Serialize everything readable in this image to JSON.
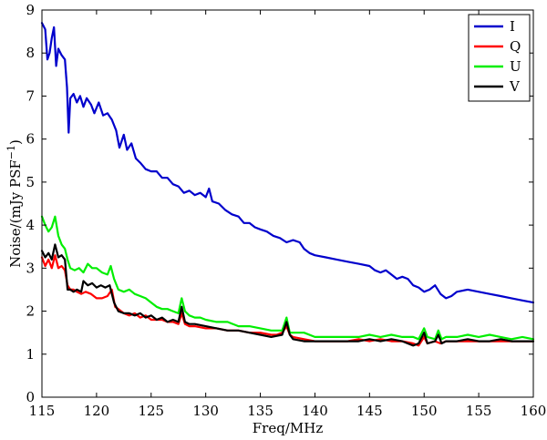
{
  "chart_data": {
    "type": "line",
    "xlabel": "Freq/MHz",
    "ylabel_main": "Noise/(mJy PSF",
    "ylabel_sup": "−1",
    "ylabel_close": ")",
    "xlim": [
      115,
      160
    ],
    "ylim": [
      0,
      9
    ],
    "xticks": [
      115,
      120,
      125,
      130,
      135,
      140,
      145,
      150,
      155,
      160
    ],
    "yticks": [
      0,
      1,
      2,
      3,
      4,
      5,
      6,
      7,
      8,
      9
    ],
    "grid": false,
    "legend_position": "top-right",
    "series": [
      {
        "name": "I",
        "color": "#0000cc",
        "points": [
          [
            115.0,
            8.7
          ],
          [
            115.3,
            8.55
          ],
          [
            115.5,
            7.85
          ],
          [
            115.7,
            8.0
          ],
          [
            115.9,
            8.35
          ],
          [
            116.1,
            8.6
          ],
          [
            116.3,
            7.7
          ],
          [
            116.5,
            8.1
          ],
          [
            116.8,
            7.95
          ],
          [
            117.1,
            7.85
          ],
          [
            117.3,
            7.2
          ],
          [
            117.45,
            6.15
          ],
          [
            117.6,
            6.95
          ],
          [
            117.9,
            7.05
          ],
          [
            118.2,
            6.85
          ],
          [
            118.5,
            7.0
          ],
          [
            118.8,
            6.75
          ],
          [
            119.1,
            6.95
          ],
          [
            119.5,
            6.8
          ],
          [
            119.8,
            6.6
          ],
          [
            120.2,
            6.85
          ],
          [
            120.6,
            6.55
          ],
          [
            121.0,
            6.6
          ],
          [
            121.4,
            6.45
          ],
          [
            121.8,
            6.2
          ],
          [
            122.1,
            5.8
          ],
          [
            122.5,
            6.1
          ],
          [
            122.8,
            5.75
          ],
          [
            123.2,
            5.9
          ],
          [
            123.6,
            5.55
          ],
          [
            124.0,
            5.45
          ],
          [
            124.5,
            5.3
          ],
          [
            125.0,
            5.25
          ],
          [
            125.5,
            5.25
          ],
          [
            126.0,
            5.1
          ],
          [
            126.5,
            5.1
          ],
          [
            127.0,
            4.95
          ],
          [
            127.5,
            4.9
          ],
          [
            128.0,
            4.75
          ],
          [
            128.5,
            4.8
          ],
          [
            129.0,
            4.7
          ],
          [
            129.5,
            4.75
          ],
          [
            130.0,
            4.65
          ],
          [
            130.3,
            4.85
          ],
          [
            130.6,
            4.55
          ],
          [
            131.2,
            4.5
          ],
          [
            131.8,
            4.35
          ],
          [
            132.4,
            4.25
          ],
          [
            133.0,
            4.2
          ],
          [
            133.5,
            4.05
          ],
          [
            134.0,
            4.05
          ],
          [
            134.5,
            3.95
          ],
          [
            135.0,
            3.9
          ],
          [
            135.6,
            3.85
          ],
          [
            136.2,
            3.75
          ],
          [
            136.8,
            3.7
          ],
          [
            137.4,
            3.6
          ],
          [
            138.0,
            3.65
          ],
          [
            138.6,
            3.6
          ],
          [
            139.0,
            3.45
          ],
          [
            139.5,
            3.35
          ],
          [
            140.0,
            3.3
          ],
          [
            141.0,
            3.25
          ],
          [
            142.0,
            3.2
          ],
          [
            143.0,
            3.15
          ],
          [
            144.0,
            3.1
          ],
          [
            145.0,
            3.05
          ],
          [
            145.5,
            2.95
          ],
          [
            146.0,
            2.9
          ],
          [
            146.5,
            2.95
          ],
          [
            147.0,
            2.85
          ],
          [
            147.5,
            2.75
          ],
          [
            148.0,
            2.8
          ],
          [
            148.5,
            2.75
          ],
          [
            149.0,
            2.6
          ],
          [
            149.5,
            2.55
          ],
          [
            150.0,
            2.45
          ],
          [
            150.5,
            2.5
          ],
          [
            151.0,
            2.6
          ],
          [
            151.5,
            2.4
          ],
          [
            152.0,
            2.3
          ],
          [
            152.5,
            2.35
          ],
          [
            153.0,
            2.45
          ],
          [
            154.0,
            2.5
          ],
          [
            155.0,
            2.45
          ],
          [
            156.0,
            2.4
          ],
          [
            157.0,
            2.35
          ],
          [
            158.0,
            2.3
          ],
          [
            159.0,
            2.25
          ],
          [
            160.0,
            2.2
          ]
        ]
      },
      {
        "name": "Q",
        "color": "#ff0000",
        "points": [
          [
            115.0,
            3.25
          ],
          [
            115.3,
            3.05
          ],
          [
            115.6,
            3.2
          ],
          [
            115.9,
            3.0
          ],
          [
            116.2,
            3.3
          ],
          [
            116.5,
            3.0
          ],
          [
            116.8,
            3.05
          ],
          [
            117.1,
            2.95
          ],
          [
            117.35,
            2.6
          ],
          [
            117.6,
            2.5
          ],
          [
            117.9,
            2.5
          ],
          [
            118.2,
            2.45
          ],
          [
            118.6,
            2.4
          ],
          [
            119.0,
            2.45
          ],
          [
            119.5,
            2.4
          ],
          [
            120.0,
            2.3
          ],
          [
            120.5,
            2.3
          ],
          [
            121.0,
            2.35
          ],
          [
            121.4,
            2.5
          ],
          [
            121.7,
            2.1
          ],
          [
            122.0,
            2.05
          ],
          [
            122.5,
            1.95
          ],
          [
            123.0,
            1.9
          ],
          [
            123.5,
            1.95
          ],
          [
            124.0,
            1.85
          ],
          [
            124.5,
            1.9
          ],
          [
            125.0,
            1.8
          ],
          [
            125.5,
            1.8
          ],
          [
            126.0,
            1.8
          ],
          [
            126.5,
            1.75
          ],
          [
            127.0,
            1.75
          ],
          [
            127.5,
            1.7
          ],
          [
            127.8,
            1.95
          ],
          [
            128.1,
            1.7
          ],
          [
            128.5,
            1.65
          ],
          [
            129.0,
            1.65
          ],
          [
            130.0,
            1.6
          ],
          [
            131.0,
            1.6
          ],
          [
            132.0,
            1.55
          ],
          [
            133.0,
            1.55
          ],
          [
            134.0,
            1.5
          ],
          [
            135.0,
            1.5
          ],
          [
            136.0,
            1.45
          ],
          [
            136.5,
            1.45
          ],
          [
            137.0,
            1.5
          ],
          [
            137.4,
            1.65
          ],
          [
            137.7,
            1.45
          ],
          [
            138.0,
            1.4
          ],
          [
            139.0,
            1.35
          ],
          [
            140.0,
            1.3
          ],
          [
            141.0,
            1.3
          ],
          [
            142.0,
            1.3
          ],
          [
            143.0,
            1.3
          ],
          [
            144.0,
            1.35
          ],
          [
            145.0,
            1.3
          ],
          [
            146.0,
            1.35
          ],
          [
            147.0,
            1.3
          ],
          [
            148.0,
            1.3
          ],
          [
            149.0,
            1.25
          ],
          [
            149.5,
            1.2
          ],
          [
            150.0,
            1.4
          ],
          [
            150.3,
            1.25
          ],
          [
            151.0,
            1.3
          ],
          [
            151.5,
            1.25
          ],
          [
            152.0,
            1.3
          ],
          [
            153.0,
            1.3
          ],
          [
            154.0,
            1.3
          ],
          [
            155.0,
            1.3
          ],
          [
            156.0,
            1.3
          ],
          [
            157.0,
            1.3
          ],
          [
            158.0,
            1.3
          ],
          [
            159.0,
            1.3
          ],
          [
            160.0,
            1.3
          ]
        ]
      },
      {
        "name": "U",
        "color": "#00ee00",
        "points": [
          [
            115.0,
            4.2
          ],
          [
            115.3,
            4.0
          ],
          [
            115.6,
            3.85
          ],
          [
            115.9,
            3.95
          ],
          [
            116.2,
            4.2
          ],
          [
            116.5,
            3.75
          ],
          [
            116.8,
            3.55
          ],
          [
            117.1,
            3.45
          ],
          [
            117.35,
            3.2
          ],
          [
            117.6,
            3.0
          ],
          [
            118.0,
            2.95
          ],
          [
            118.4,
            3.0
          ],
          [
            118.8,
            2.9
          ],
          [
            119.2,
            3.1
          ],
          [
            119.6,
            3.0
          ],
          [
            120.0,
            3.0
          ],
          [
            120.5,
            2.9
          ],
          [
            121.0,
            2.85
          ],
          [
            121.3,
            3.05
          ],
          [
            121.6,
            2.75
          ],
          [
            122.0,
            2.5
          ],
          [
            122.5,
            2.45
          ],
          [
            123.0,
            2.5
          ],
          [
            123.5,
            2.4
          ],
          [
            124.0,
            2.35
          ],
          [
            124.5,
            2.3
          ],
          [
            125.0,
            2.2
          ],
          [
            125.5,
            2.1
          ],
          [
            126.0,
            2.05
          ],
          [
            126.5,
            2.05
          ],
          [
            127.0,
            2.0
          ],
          [
            127.5,
            1.95
          ],
          [
            127.8,
            2.3
          ],
          [
            128.1,
            2.0
          ],
          [
            128.5,
            1.9
          ],
          [
            129.0,
            1.85
          ],
          [
            129.5,
            1.85
          ],
          [
            130.0,
            1.8
          ],
          [
            131.0,
            1.75
          ],
          [
            132.0,
            1.75
          ],
          [
            133.0,
            1.65
          ],
          [
            134.0,
            1.65
          ],
          [
            135.0,
            1.6
          ],
          [
            136.0,
            1.55
          ],
          [
            137.0,
            1.55
          ],
          [
            137.4,
            1.85
          ],
          [
            137.7,
            1.5
          ],
          [
            138.0,
            1.5
          ],
          [
            139.0,
            1.5
          ],
          [
            140.0,
            1.4
          ],
          [
            141.0,
            1.4
          ],
          [
            142.0,
            1.4
          ],
          [
            143.0,
            1.4
          ],
          [
            144.0,
            1.4
          ],
          [
            145.0,
            1.45
          ],
          [
            146.0,
            1.4
          ],
          [
            147.0,
            1.45
          ],
          [
            148.0,
            1.4
          ],
          [
            149.0,
            1.4
          ],
          [
            149.5,
            1.35
          ],
          [
            150.0,
            1.6
          ],
          [
            150.3,
            1.4
          ],
          [
            151.0,
            1.35
          ],
          [
            151.3,
            1.55
          ],
          [
            151.6,
            1.35
          ],
          [
            152.0,
            1.4
          ],
          [
            153.0,
            1.4
          ],
          [
            154.0,
            1.45
          ],
          [
            155.0,
            1.4
          ],
          [
            156.0,
            1.45
          ],
          [
            157.0,
            1.4
          ],
          [
            158.0,
            1.35
          ],
          [
            159.0,
            1.4
          ],
          [
            160.0,
            1.35
          ]
        ]
      },
      {
        "name": "V",
        "color": "#000000",
        "points": [
          [
            115.0,
            3.4
          ],
          [
            115.3,
            3.25
          ],
          [
            115.6,
            3.35
          ],
          [
            115.9,
            3.2
          ],
          [
            116.2,
            3.55
          ],
          [
            116.5,
            3.25
          ],
          [
            116.8,
            3.3
          ],
          [
            117.1,
            3.2
          ],
          [
            117.35,
            2.5
          ],
          [
            117.6,
            2.5
          ],
          [
            117.9,
            2.45
          ],
          [
            118.2,
            2.5
          ],
          [
            118.6,
            2.45
          ],
          [
            118.8,
            2.7
          ],
          [
            119.2,
            2.6
          ],
          [
            119.6,
            2.65
          ],
          [
            120.0,
            2.55
          ],
          [
            120.4,
            2.6
          ],
          [
            120.8,
            2.55
          ],
          [
            121.2,
            2.6
          ],
          [
            121.6,
            2.2
          ],
          [
            122.0,
            2.0
          ],
          [
            122.5,
            1.95
          ],
          [
            123.0,
            1.95
          ],
          [
            123.5,
            1.9
          ],
          [
            124.0,
            1.95
          ],
          [
            124.5,
            1.85
          ],
          [
            125.0,
            1.9
          ],
          [
            125.5,
            1.8
          ],
          [
            126.0,
            1.85
          ],
          [
            126.5,
            1.75
          ],
          [
            127.0,
            1.8
          ],
          [
            127.5,
            1.75
          ],
          [
            127.8,
            2.1
          ],
          [
            128.1,
            1.75
          ],
          [
            128.5,
            1.7
          ],
          [
            129.0,
            1.7
          ],
          [
            130.0,
            1.65
          ],
          [
            131.0,
            1.6
          ],
          [
            132.0,
            1.55
          ],
          [
            133.0,
            1.55
          ],
          [
            134.0,
            1.5
          ],
          [
            135.0,
            1.45
          ],
          [
            136.0,
            1.4
          ],
          [
            137.0,
            1.45
          ],
          [
            137.4,
            1.75
          ],
          [
            137.7,
            1.45
          ],
          [
            138.0,
            1.35
          ],
          [
            139.0,
            1.3
          ],
          [
            140.0,
            1.3
          ],
          [
            141.0,
            1.3
          ],
          [
            142.0,
            1.3
          ],
          [
            143.0,
            1.3
          ],
          [
            144.0,
            1.3
          ],
          [
            145.0,
            1.35
          ],
          [
            146.0,
            1.3
          ],
          [
            147.0,
            1.35
          ],
          [
            148.0,
            1.3
          ],
          [
            149.0,
            1.2
          ],
          [
            149.5,
            1.25
          ],
          [
            150.0,
            1.5
          ],
          [
            150.3,
            1.25
          ],
          [
            151.0,
            1.3
          ],
          [
            151.3,
            1.45
          ],
          [
            151.6,
            1.25
          ],
          [
            152.0,
            1.3
          ],
          [
            153.0,
            1.3
          ],
          [
            154.0,
            1.35
          ],
          [
            155.0,
            1.3
          ],
          [
            156.0,
            1.3
          ],
          [
            157.0,
            1.35
          ],
          [
            158.0,
            1.3
          ],
          [
            159.0,
            1.3
          ],
          [
            160.0,
            1.3
          ]
        ]
      }
    ]
  }
}
